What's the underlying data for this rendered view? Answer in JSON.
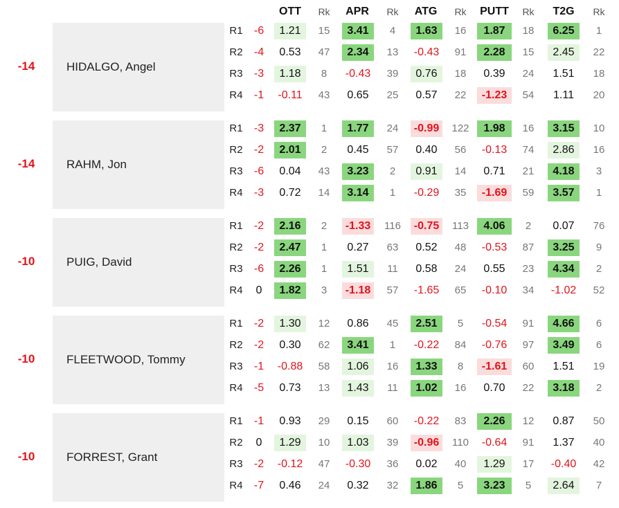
{
  "headers": [
    "OTT",
    "Rk",
    "APR",
    "Rk",
    "ATG",
    "Rk",
    "PUTT",
    "Rk",
    "T2G",
    "Rk"
  ],
  "players": [
    {
      "name": "HIDALGO, Angel",
      "total": "-14",
      "rounds": [
        {
          "round": "R1",
          "score": "-6",
          "stats": [
            {
              "v": "1.21",
              "rk": "15",
              "s": "g1"
            },
            {
              "v": "3.41",
              "rk": "4",
              "s": "g2"
            },
            {
              "v": "1.63",
              "rk": "16",
              "s": "g2"
            },
            {
              "v": "1.87",
              "rk": "18",
              "s": "g2"
            },
            {
              "v": "6.25",
              "rk": "1",
              "s": "g2"
            }
          ]
        },
        {
          "round": "R2",
          "score": "-4",
          "stats": [
            {
              "v": "0.53",
              "rk": "47",
              "s": ""
            },
            {
              "v": "2.34",
              "rk": "13",
              "s": "g2"
            },
            {
              "v": "-0.43",
              "rk": "91",
              "s": ""
            },
            {
              "v": "2.28",
              "rk": "15",
              "s": "g2"
            },
            {
              "v": "2.45",
              "rk": "22",
              "s": "g1"
            }
          ]
        },
        {
          "round": "R3",
          "score": "-3",
          "stats": [
            {
              "v": "1.18",
              "rk": "8",
              "s": "g1"
            },
            {
              "v": "-0.43",
              "rk": "39",
              "s": ""
            },
            {
              "v": "0.76",
              "rk": "18",
              "s": "g1"
            },
            {
              "v": "0.39",
              "rk": "24",
              "s": ""
            },
            {
              "v": "1.51",
              "rk": "18",
              "s": ""
            }
          ]
        },
        {
          "round": "R4",
          "score": "-1",
          "stats": [
            {
              "v": "-0.11",
              "rk": "43",
              "s": ""
            },
            {
              "v": "0.65",
              "rk": "25",
              "s": ""
            },
            {
              "v": "0.57",
              "rk": "22",
              "s": ""
            },
            {
              "v": "-1.23",
              "rk": "54",
              "s": "r1"
            },
            {
              "v": "1.11",
              "rk": "20",
              "s": ""
            }
          ]
        }
      ]
    },
    {
      "name": "RAHM, Jon",
      "total": "-14",
      "rounds": [
        {
          "round": "R1",
          "score": "-3",
          "stats": [
            {
              "v": "2.37",
              "rk": "1",
              "s": "g2"
            },
            {
              "v": "1.77",
              "rk": "24",
              "s": "g2"
            },
            {
              "v": "-0.99",
              "rk": "122",
              "s": "r1"
            },
            {
              "v": "1.98",
              "rk": "16",
              "s": "g2"
            },
            {
              "v": "3.15",
              "rk": "10",
              "s": "g2"
            }
          ]
        },
        {
          "round": "R2",
          "score": "-2",
          "stats": [
            {
              "v": "2.01",
              "rk": "2",
              "s": "g2"
            },
            {
              "v": "0.45",
              "rk": "57",
              "s": ""
            },
            {
              "v": "0.40",
              "rk": "56",
              "s": ""
            },
            {
              "v": "-0.13",
              "rk": "74",
              "s": ""
            },
            {
              "v": "2.86",
              "rk": "16",
              "s": "g1"
            }
          ]
        },
        {
          "round": "R3",
          "score": "-6",
          "stats": [
            {
              "v": "0.04",
              "rk": "43",
              "s": ""
            },
            {
              "v": "3.23",
              "rk": "2",
              "s": "g2"
            },
            {
              "v": "0.91",
              "rk": "14",
              "s": "g1"
            },
            {
              "v": "0.71",
              "rk": "21",
              "s": ""
            },
            {
              "v": "4.18",
              "rk": "3",
              "s": "g2"
            }
          ]
        },
        {
          "round": "R4",
          "score": "-3",
          "stats": [
            {
              "v": "0.72",
              "rk": "14",
              "s": ""
            },
            {
              "v": "3.14",
              "rk": "1",
              "s": "g2"
            },
            {
              "v": "-0.29",
              "rk": "35",
              "s": ""
            },
            {
              "v": "-1.69",
              "rk": "59",
              "s": "r1"
            },
            {
              "v": "3.57",
              "rk": "1",
              "s": "g2"
            }
          ]
        }
      ]
    },
    {
      "name": "PUIG, David",
      "total": "-10",
      "rounds": [
        {
          "round": "R1",
          "score": "-2",
          "stats": [
            {
              "v": "2.16",
              "rk": "2",
              "s": "g2"
            },
            {
              "v": "-1.33",
              "rk": "116",
              "s": "r1"
            },
            {
              "v": "-0.75",
              "rk": "113",
              "s": "r1"
            },
            {
              "v": "4.06",
              "rk": "2",
              "s": "g2"
            },
            {
              "v": "0.07",
              "rk": "76",
              "s": ""
            }
          ]
        },
        {
          "round": "R2",
          "score": "-2",
          "stats": [
            {
              "v": "2.47",
              "rk": "1",
              "s": "g2"
            },
            {
              "v": "0.27",
              "rk": "63",
              "s": ""
            },
            {
              "v": "0.52",
              "rk": "48",
              "s": ""
            },
            {
              "v": "-0.53",
              "rk": "87",
              "s": ""
            },
            {
              "v": "3.25",
              "rk": "9",
              "s": "g2"
            }
          ]
        },
        {
          "round": "R3",
          "score": "-6",
          "stats": [
            {
              "v": "2.26",
              "rk": "1",
              "s": "g2"
            },
            {
              "v": "1.51",
              "rk": "11",
              "s": "g1"
            },
            {
              "v": "0.58",
              "rk": "24",
              "s": ""
            },
            {
              "v": "0.55",
              "rk": "23",
              "s": ""
            },
            {
              "v": "4.34",
              "rk": "2",
              "s": "g2"
            }
          ]
        },
        {
          "round": "R4",
          "score": "0",
          "stats": [
            {
              "v": "1.82",
              "rk": "3",
              "s": "g2"
            },
            {
              "v": "-1.18",
              "rk": "57",
              "s": "r1"
            },
            {
              "v": "-1.65",
              "rk": "65",
              "s": ""
            },
            {
              "v": "-0.10",
              "rk": "34",
              "s": ""
            },
            {
              "v": "-1.02",
              "rk": "52",
              "s": ""
            }
          ]
        }
      ]
    },
    {
      "name": "FLEETWOOD, Tommy",
      "total": "-10",
      "rounds": [
        {
          "round": "R1",
          "score": "-2",
          "stats": [
            {
              "v": "1.30",
              "rk": "12",
              "s": "g1"
            },
            {
              "v": "0.86",
              "rk": "45",
              "s": ""
            },
            {
              "v": "2.51",
              "rk": "5",
              "s": "g2"
            },
            {
              "v": "-0.54",
              "rk": "91",
              "s": ""
            },
            {
              "v": "4.66",
              "rk": "6",
              "s": "g2"
            }
          ]
        },
        {
          "round": "R2",
          "score": "-2",
          "stats": [
            {
              "v": "0.30",
              "rk": "62",
              "s": ""
            },
            {
              "v": "3.41",
              "rk": "1",
              "s": "g2"
            },
            {
              "v": "-0.22",
              "rk": "84",
              "s": ""
            },
            {
              "v": "-0.76",
              "rk": "97",
              "s": ""
            },
            {
              "v": "3.49",
              "rk": "6",
              "s": "g2"
            }
          ]
        },
        {
          "round": "R3",
          "score": "-1",
          "stats": [
            {
              "v": "-0.88",
              "rk": "58",
              "s": ""
            },
            {
              "v": "1.06",
              "rk": "16",
              "s": "g1"
            },
            {
              "v": "1.33",
              "rk": "8",
              "s": "g2"
            },
            {
              "v": "-1.61",
              "rk": "60",
              "s": "r1"
            },
            {
              "v": "1.51",
              "rk": "19",
              "s": ""
            }
          ]
        },
        {
          "round": "R4",
          "score": "-5",
          "stats": [
            {
              "v": "0.73",
              "rk": "13",
              "s": ""
            },
            {
              "v": "1.43",
              "rk": "11",
              "s": "g1"
            },
            {
              "v": "1.02",
              "rk": "16",
              "s": "g2"
            },
            {
              "v": "0.70",
              "rk": "22",
              "s": ""
            },
            {
              "v": "3.18",
              "rk": "2",
              "s": "g2"
            }
          ]
        }
      ]
    },
    {
      "name": "FORREST, Grant",
      "total": "-10",
      "rounds": [
        {
          "round": "R1",
          "score": "-1",
          "stats": [
            {
              "v": "0.93",
              "rk": "29",
              "s": ""
            },
            {
              "v": "0.15",
              "rk": "60",
              "s": ""
            },
            {
              "v": "-0.22",
              "rk": "83",
              "s": ""
            },
            {
              "v": "2.26",
              "rk": "12",
              "s": "g2"
            },
            {
              "v": "0.87",
              "rk": "50",
              "s": ""
            }
          ]
        },
        {
          "round": "R2",
          "score": "0",
          "stats": [
            {
              "v": "1.29",
              "rk": "10",
              "s": "g1"
            },
            {
              "v": "1.03",
              "rk": "39",
              "s": "g1"
            },
            {
              "v": "-0.96",
              "rk": "110",
              "s": "r1"
            },
            {
              "v": "-0.64",
              "rk": "91",
              "s": ""
            },
            {
              "v": "1.37",
              "rk": "40",
              "s": ""
            }
          ]
        },
        {
          "round": "R3",
          "score": "-2",
          "stats": [
            {
              "v": "-0.12",
              "rk": "47",
              "s": ""
            },
            {
              "v": "-0.30",
              "rk": "36",
              "s": ""
            },
            {
              "v": "0.02",
              "rk": "40",
              "s": ""
            },
            {
              "v": "1.29",
              "rk": "17",
              "s": "g1"
            },
            {
              "v": "-0.40",
              "rk": "42",
              "s": ""
            }
          ]
        },
        {
          "round": "R4",
          "score": "-7",
          "stats": [
            {
              "v": "0.46",
              "rk": "24",
              "s": ""
            },
            {
              "v": "0.32",
              "rk": "32",
              "s": ""
            },
            {
              "v": "1.86",
              "rk": "5",
              "s": "g2"
            },
            {
              "v": "3.23",
              "rk": "5",
              "s": "g2"
            },
            {
              "v": "2.64",
              "rk": "7",
              "s": "g1"
            }
          ]
        }
      ]
    }
  ]
}
